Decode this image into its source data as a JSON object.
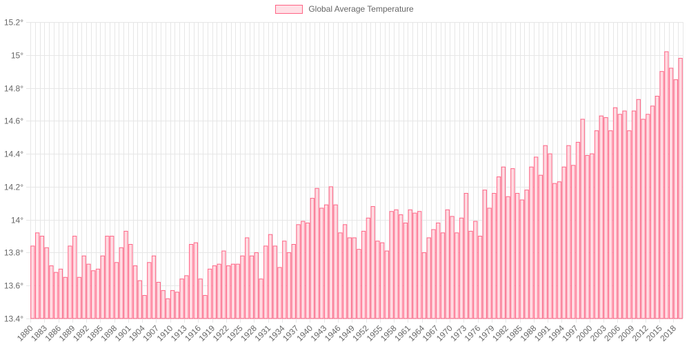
{
  "chart_data": {
    "type": "bar",
    "legend": {
      "label": "Global Average Temperature",
      "position": "top",
      "swatch_fill": "#ffdbe2",
      "swatch_border": "#ff6384"
    },
    "colors": {
      "bar_fill": "#ffdbe2",
      "bar_border": "#ff6384",
      "grid": "#e6e6e6",
      "text": "#666666"
    },
    "grid": true,
    "ylim": [
      13.4,
      15.2
    ],
    "yticks": [
      13.4,
      13.6,
      13.8,
      14.0,
      14.2,
      14.4,
      14.6,
      14.8,
      15.0,
      15.2
    ],
    "ytick_labels": [
      "13.4°",
      "13.6°",
      "13.8°",
      "14°",
      "14.2°",
      "14.4°",
      "14.6°",
      "14.8°",
      "15°",
      "15.2°"
    ],
    "xtick_step": 3,
    "categories": [
      1880,
      1881,
      1882,
      1883,
      1884,
      1885,
      1886,
      1887,
      1888,
      1889,
      1890,
      1891,
      1892,
      1893,
      1894,
      1895,
      1896,
      1897,
      1898,
      1899,
      1900,
      1901,
      1902,
      1903,
      1904,
      1905,
      1906,
      1907,
      1908,
      1909,
      1910,
      1911,
      1912,
      1913,
      1914,
      1915,
      1916,
      1917,
      1918,
      1919,
      1920,
      1921,
      1922,
      1923,
      1924,
      1925,
      1926,
      1927,
      1928,
      1929,
      1930,
      1931,
      1932,
      1933,
      1934,
      1935,
      1936,
      1937,
      1938,
      1939,
      1940,
      1941,
      1942,
      1943,
      1944,
      1945,
      1946,
      1947,
      1948,
      1949,
      1950,
      1951,
      1952,
      1953,
      1954,
      1955,
      1956,
      1957,
      1958,
      1959,
      1960,
      1961,
      1962,
      1963,
      1964,
      1965,
      1966,
      1967,
      1968,
      1969,
      1970,
      1971,
      1972,
      1973,
      1974,
      1975,
      1976,
      1977,
      1978,
      1979,
      1980,
      1981,
      1982,
      1983,
      1984,
      1985,
      1986,
      1987,
      1988,
      1989,
      1990,
      1991,
      1992,
      1993,
      1994,
      1995,
      1996,
      1997,
      1998,
      1999,
      2000,
      2001,
      2002,
      2003,
      2004,
      2005,
      2006,
      2007,
      2008,
      2009,
      2010,
      2011,
      2012,
      2013,
      2014,
      2015,
      2016,
      2017,
      2018,
      2019
    ],
    "series": [
      {
        "name": "Global Average Temperature",
        "values": [
          13.84,
          13.92,
          13.9,
          13.83,
          13.72,
          13.68,
          13.7,
          13.65,
          13.84,
          13.9,
          13.65,
          13.78,
          13.73,
          13.69,
          13.7,
          13.78,
          13.9,
          13.9,
          13.74,
          13.83,
          13.93,
          13.85,
          13.72,
          13.63,
          13.54,
          13.74,
          13.78,
          13.62,
          13.57,
          13.52,
          13.57,
          13.56,
          13.64,
          13.66,
          13.85,
          13.86,
          13.64,
          13.54,
          13.7,
          13.72,
          13.73,
          13.81,
          13.72,
          13.73,
          13.73,
          13.78,
          13.89,
          13.78,
          13.8,
          13.64,
          13.84,
          13.91,
          13.84,
          13.71,
          13.87,
          13.8,
          13.85,
          13.97,
          13.99,
          13.98,
          14.13,
          14.19,
          14.07,
          14.09,
          14.2,
          14.09,
          13.92,
          13.97,
          13.89,
          13.89,
          13.82,
          13.93,
          14.01,
          14.08,
          13.87,
          13.86,
          13.81,
          14.05,
          14.06,
          14.03,
          13.98,
          14.06,
          14.04,
          14.05,
          13.8,
          13.89,
          13.94,
          13.98,
          13.92,
          14.06,
          14.02,
          13.92,
          14.01,
          14.16,
          13.93,
          13.99,
          13.9,
          14.18,
          14.07,
          14.16,
          14.26,
          14.32,
          14.14,
          14.31,
          14.16,
          14.12,
          14.18,
          14.32,
          14.38,
          14.27,
          14.45,
          14.4,
          14.22,
          14.23,
          14.32,
          14.45,
          14.33,
          14.47,
          14.61,
          14.39,
          14.4,
          14.54,
          14.63,
          14.62,
          14.54,
          14.68,
          14.64,
          14.66,
          14.54,
          14.66,
          14.73,
          14.61,
          14.64,
          14.69,
          14.75,
          14.9,
          15.02,
          14.92,
          14.85,
          14.98
        ]
      }
    ]
  }
}
